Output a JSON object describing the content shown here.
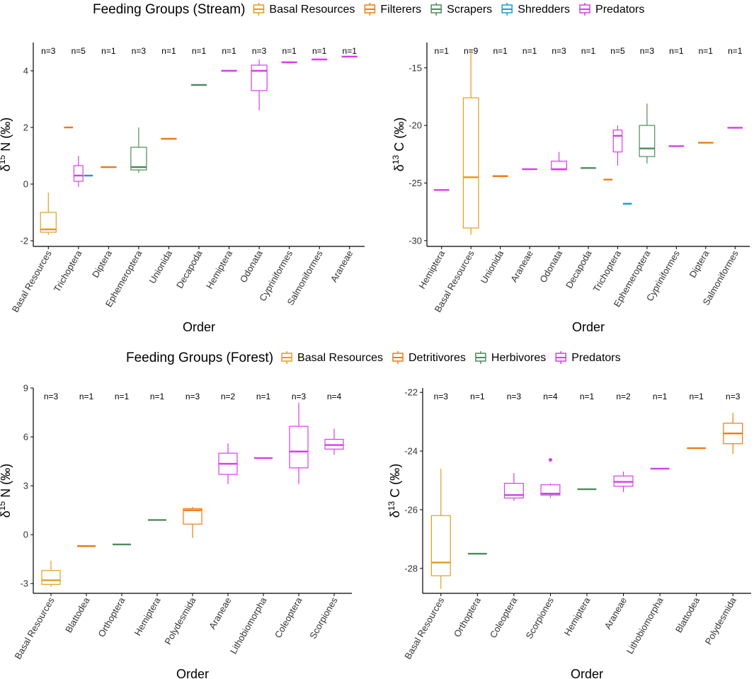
{
  "figure": {
    "ylabel_prefix": "δ",
    "xlabel": "Order",
    "legend_stream": {
      "title": "Feeding Groups (Stream)",
      "entries": [
        "Basal Resources",
        "Filterers",
        "Scrapers",
        "Shredders",
        "Predators"
      ]
    },
    "legend_forest": {
      "title": "Feeding Groups (Forest)",
      "entries": [
        "Basal Resources",
        "Detritivores",
        "Herbivores",
        "Predators"
      ]
    }
  },
  "colors": {
    "Basal Resources": "#E09E1B",
    "Filterers": "#F07A14",
    "Detritivores": "#F07A14",
    "Scrapers": "#4E8A5E",
    "Herbivores": "#4E8A5E",
    "Shredders": "#1A9BD1",
    "Predators": "#D33FE8"
  },
  "chart_data": [
    {
      "type": "box",
      "id": "stream-n",
      "title": "Feeding Groups (Stream)",
      "xlabel": "Order",
      "ylabel": {
        "iso": "15",
        "element": "N",
        "unit": "(‰)"
      },
      "ylim": [
        -2.2,
        5.0
      ],
      "yticks": [
        -2,
        0,
        2,
        4
      ],
      "categories": [
        "Basal Resources",
        "Trichoptera",
        "Diptera",
        "Ephemeroptera",
        "Unionida",
        "Decapoda",
        "Hemiptera",
        "Odonata",
        "Cypriniformes",
        "Salmoniformes",
        "Araneae"
      ],
      "n_labels": [
        "n=3",
        "n=5",
        "n=1",
        "n=3",
        "n=1",
        "n=1",
        "n=1",
        "n=3",
        "n=1",
        "n=1",
        "n=1"
      ],
      "boxes": [
        {
          "cat": 0,
          "group": "Basal Resources",
          "min": -1.8,
          "q1": -1.7,
          "median": -1.6,
          "q3": -1.0,
          "max": -0.3
        },
        {
          "cat": 1,
          "group": "Filterers",
          "offset": -1,
          "min": 2.0,
          "q1": 2.0,
          "median": 2.0,
          "q3": 2.0,
          "max": 2.0
        },
        {
          "cat": 1,
          "group": "Predators",
          "offset": 0,
          "min": -0.1,
          "q1": 0.1,
          "median": 0.3,
          "q3": 0.65,
          "max": 1.0
        },
        {
          "cat": 1,
          "group": "Shredders",
          "offset": 1,
          "min": 0.3,
          "q1": 0.3,
          "median": 0.3,
          "q3": 0.3,
          "max": 0.3
        },
        {
          "cat": 2,
          "group": "Filterers",
          "min": 0.6,
          "q1": 0.6,
          "median": 0.6,
          "q3": 0.6,
          "max": 0.6
        },
        {
          "cat": 3,
          "group": "Scrapers",
          "min": 0.4,
          "q1": 0.5,
          "median": 0.6,
          "q3": 1.3,
          "max": 2.0
        },
        {
          "cat": 4,
          "group": "Filterers",
          "min": 1.6,
          "q1": 1.6,
          "median": 1.6,
          "q3": 1.6,
          "max": 1.6
        },
        {
          "cat": 5,
          "group": "Scrapers",
          "min": 3.5,
          "q1": 3.5,
          "median": 3.5,
          "q3": 3.5,
          "max": 3.5
        },
        {
          "cat": 6,
          "group": "Predators",
          "min": 4.0,
          "q1": 4.0,
          "median": 4.0,
          "q3": 4.0,
          "max": 4.0
        },
        {
          "cat": 7,
          "group": "Predators",
          "min": 2.6,
          "q1": 3.3,
          "median": 4.0,
          "q3": 4.2,
          "max": 4.4
        },
        {
          "cat": 8,
          "group": "Predators",
          "min": 4.3,
          "q1": 4.3,
          "median": 4.3,
          "q3": 4.3,
          "max": 4.3
        },
        {
          "cat": 9,
          "group": "Predators",
          "min": 4.4,
          "q1": 4.4,
          "median": 4.4,
          "q3": 4.4,
          "max": 4.4
        },
        {
          "cat": 10,
          "group": "Predators",
          "min": 4.5,
          "q1": 4.5,
          "median": 4.5,
          "q3": 4.5,
          "max": 4.5
        }
      ]
    },
    {
      "type": "box",
      "id": "stream-c",
      "title": "Feeding Groups (Stream)",
      "xlabel": "Order",
      "ylabel": {
        "iso": "13",
        "element": "C",
        "unit": "(‰)"
      },
      "ylim": [
        -30.5,
        -12.8
      ],
      "yticks": [
        -30,
        -25,
        -20,
        -15
      ],
      "categories": [
        "Hemiptera",
        "Basal Resources",
        "Unionida",
        "Araneae",
        "Odonata",
        "Decapoda",
        "Trichoptera",
        "Ephemeroptera",
        "Cypriniformes",
        "Diptera",
        "Salmoniformes"
      ],
      "n_labels": [
        "n=1",
        "n=9",
        "n=1",
        "n=1",
        "n=3",
        "n=1",
        "n=5",
        "n=3",
        "n=1",
        "n=1",
        "n=1"
      ],
      "boxes": [
        {
          "cat": 0,
          "group": "Predators",
          "min": -25.6,
          "q1": -25.6,
          "median": -25.6,
          "q3": -25.6,
          "max": -25.6
        },
        {
          "cat": 1,
          "group": "Basal Resources",
          "min": -29.5,
          "q1": -28.9,
          "median": -24.5,
          "q3": -17.6,
          "max": -13.5
        },
        {
          "cat": 2,
          "group": "Filterers",
          "min": -24.4,
          "q1": -24.4,
          "median": -24.4,
          "q3": -24.4,
          "max": -24.4
        },
        {
          "cat": 3,
          "group": "Predators",
          "min": -23.8,
          "q1": -23.8,
          "median": -23.8,
          "q3": -23.8,
          "max": -23.8
        },
        {
          "cat": 4,
          "group": "Predators",
          "min": -23.9,
          "q1": -23.85,
          "median": -23.8,
          "q3": -23.1,
          "max": -22.3
        },
        {
          "cat": 5,
          "group": "Scrapers",
          "min": -23.7,
          "q1": -23.7,
          "median": -23.7,
          "q3": -23.7,
          "max": -23.7
        },
        {
          "cat": 6,
          "group": "Filterers",
          "offset": -1,
          "min": -24.7,
          "q1": -24.7,
          "median": -24.7,
          "q3": -24.7,
          "max": -24.7
        },
        {
          "cat": 6,
          "group": "Predators",
          "offset": 0,
          "min": -23.5,
          "q1": -22.3,
          "median": -20.9,
          "q3": -20.4,
          "max": -20.0
        },
        {
          "cat": 6,
          "group": "Shredders",
          "offset": 1,
          "min": -26.8,
          "q1": -26.8,
          "median": -26.8,
          "q3": -26.8,
          "max": -26.8
        },
        {
          "cat": 7,
          "group": "Scrapers",
          "min": -23.3,
          "q1": -22.7,
          "median": -22.0,
          "q3": -20.0,
          "max": -18.1
        },
        {
          "cat": 8,
          "group": "Predators",
          "min": -21.8,
          "q1": -21.8,
          "median": -21.8,
          "q3": -21.8,
          "max": -21.8
        },
        {
          "cat": 9,
          "group": "Filterers",
          "min": -21.5,
          "q1": -21.5,
          "median": -21.5,
          "q3": -21.5,
          "max": -21.5
        },
        {
          "cat": 10,
          "group": "Predators",
          "min": -20.2,
          "q1": -20.2,
          "median": -20.2,
          "q3": -20.2,
          "max": -20.2
        }
      ]
    },
    {
      "type": "box",
      "id": "forest-n",
      "title": "Feeding Groups (Forest)",
      "xlabel": "Order",
      "ylabel": {
        "iso": "15",
        "element": "N",
        "unit": "(‰)"
      },
      "ylim": [
        -3.6,
        9.0
      ],
      "yticks": [
        -3,
        0,
        3,
        6,
        9
      ],
      "categories": [
        "Basal Resources",
        "Blattodea",
        "Orthoptera",
        "Hemiptera",
        "Polydesmida",
        "Araneae",
        "Lithobiomorpha",
        "Coleoptera",
        "Scorpiones"
      ],
      "n_labels": [
        "n=3",
        "n=1",
        "n=1",
        "n=1",
        "n=3",
        "n=2",
        "n=1",
        "n=3",
        "n=4"
      ],
      "boxes": [
        {
          "cat": 0,
          "group": "Basal Resources",
          "min": -3.2,
          "q1": -3.05,
          "median": -2.8,
          "q3": -2.2,
          "max": -1.6
        },
        {
          "cat": 1,
          "group": "Detritivores",
          "min": -0.7,
          "q1": -0.7,
          "median": -0.7,
          "q3": -0.7,
          "max": -0.7
        },
        {
          "cat": 2,
          "group": "Herbivores",
          "min": -0.6,
          "q1": -0.6,
          "median": -0.6,
          "q3": -0.6,
          "max": -0.6
        },
        {
          "cat": 3,
          "group": "Herbivores",
          "min": 0.9,
          "q1": 0.9,
          "median": 0.9,
          "q3": 0.9,
          "max": 0.9
        },
        {
          "cat": 4,
          "group": "Detritivores",
          "min": -0.2,
          "q1": 0.65,
          "median": 1.5,
          "q3": 1.6,
          "max": 1.7
        },
        {
          "cat": 5,
          "group": "Predators",
          "min": 3.1,
          "q1": 3.7,
          "median": 4.35,
          "q3": 5.0,
          "max": 5.6
        },
        {
          "cat": 6,
          "group": "Predators",
          "min": 4.7,
          "q1": 4.7,
          "median": 4.7,
          "q3": 4.7,
          "max": 4.7
        },
        {
          "cat": 7,
          "group": "Predators",
          "min": 3.1,
          "q1": 4.1,
          "median": 5.1,
          "q3": 6.65,
          "max": 8.1
        },
        {
          "cat": 8,
          "group": "Predators",
          "min": 4.9,
          "q1": 5.25,
          "median": 5.5,
          "q3": 5.85,
          "max": 6.5
        }
      ]
    },
    {
      "type": "box",
      "id": "forest-c",
      "title": "Feeding Groups (Forest)",
      "xlabel": "Order",
      "ylabel": {
        "iso": "13",
        "element": "C",
        "unit": "(‰)"
      },
      "ylim": [
        -28.85,
        -21.85
      ],
      "yticks": [
        -28,
        -26,
        -24,
        -22
      ],
      "categories": [
        "Basal Resources",
        "Orthoptera",
        "Coleoptera",
        "Scorpiones",
        "Hemiptera",
        "Araneae",
        "Lithobiomorpha",
        "Blattodea",
        "Polydesmida"
      ],
      "n_labels": [
        "n=3",
        "n=1",
        "n=3",
        "n=4",
        "n=1",
        "n=2",
        "n=1",
        "n=1",
        "n=3"
      ],
      "boxes": [
        {
          "cat": 0,
          "group": "Basal Resources",
          "min": -28.7,
          "q1": -28.25,
          "median": -27.8,
          "q3": -26.2,
          "max": -24.6
        },
        {
          "cat": 1,
          "group": "Herbivores",
          "min": -27.5,
          "q1": -27.5,
          "median": -27.5,
          "q3": -27.5,
          "max": -27.5
        },
        {
          "cat": 2,
          "group": "Predators",
          "min": -25.7,
          "q1": -25.6,
          "median": -25.5,
          "q3": -25.1,
          "max": -24.75
        },
        {
          "cat": 3,
          "group": "Predators",
          "min": -25.6,
          "q1": -25.5,
          "median": -25.45,
          "q3": -25.15,
          "max": -25.1,
          "outliers": [
            -24.3
          ]
        },
        {
          "cat": 4,
          "group": "Herbivores",
          "min": -25.3,
          "q1": -25.3,
          "median": -25.3,
          "q3": -25.3,
          "max": -25.3
        },
        {
          "cat": 5,
          "group": "Predators",
          "min": -25.4,
          "q1": -25.2,
          "median": -25.05,
          "q3": -24.85,
          "max": -24.7
        },
        {
          "cat": 6,
          "group": "Predators",
          "min": -24.6,
          "q1": -24.6,
          "median": -24.6,
          "q3": -24.6,
          "max": -24.6
        },
        {
          "cat": 7,
          "group": "Detritivores",
          "min": -23.9,
          "q1": -23.9,
          "median": -23.9,
          "q3": -23.9,
          "max": -23.9
        },
        {
          "cat": 8,
          "group": "Detritivores",
          "min": -24.1,
          "q1": -23.75,
          "median": -23.4,
          "q3": -23.05,
          "max": -22.7
        }
      ]
    }
  ]
}
